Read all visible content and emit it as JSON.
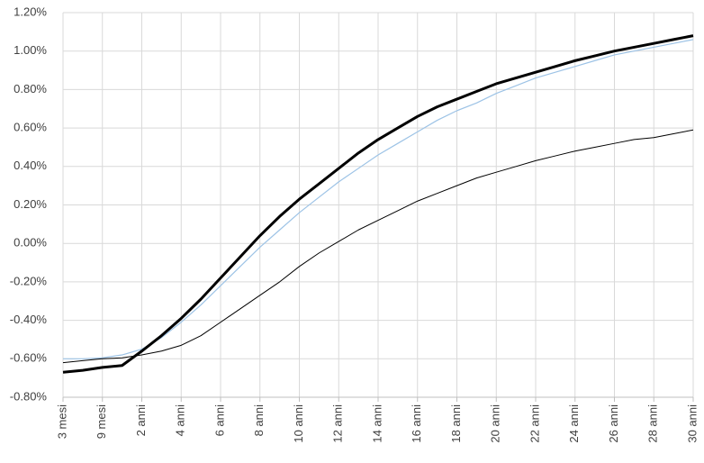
{
  "chart_data": {
    "type": "line",
    "categories": [
      "3 mesi",
      null,
      "9 mesi",
      null,
      "2 anni",
      null,
      "4 anni",
      null,
      "6 anni",
      null,
      "8 anni",
      null,
      "10 anni",
      null,
      "12 anni",
      null,
      "14 anni",
      null,
      "16 anni",
      null,
      "18 anni",
      null,
      "20 anni",
      null,
      "22 anni",
      null,
      "24 anni",
      null,
      "26 anni",
      null,
      "28 anni",
      null,
      "30 anni"
    ],
    "series": [
      {
        "color": "#9dc3e6",
        "width": 1.2,
        "values": [
          -0.6,
          -0.6,
          -0.595,
          -0.58,
          -0.55,
          -0.49,
          -0.41,
          -0.32,
          -0.22,
          -0.12,
          -0.02,
          0.07,
          0.16,
          0.24,
          0.32,
          0.39,
          0.46,
          0.52,
          0.58,
          0.64,
          0.69,
          0.73,
          0.78,
          0.82,
          0.86,
          0.89,
          0.92,
          0.95,
          0.98,
          1.0,
          1.02,
          1.04,
          1.06
        ]
      },
      {
        "color": "#000000",
        "width": 1,
        "values": [
          -0.62,
          -0.61,
          -0.6,
          -0.595,
          -0.58,
          -0.56,
          -0.53,
          -0.48,
          -0.41,
          -0.34,
          -0.27,
          -0.2,
          -0.12,
          -0.05,
          0.01,
          0.07,
          0.12,
          0.17,
          0.22,
          0.26,
          0.3,
          0.34,
          0.37,
          0.4,
          0.43,
          0.455,
          0.48,
          0.5,
          0.52,
          0.54,
          0.55,
          0.57,
          0.59
        ]
      },
      {
        "color": "#000000",
        "width": 3,
        "values": [
          -0.67,
          -0.66,
          -0.645,
          -0.635,
          -0.56,
          -0.48,
          -0.39,
          -0.29,
          -0.18,
          -0.07,
          0.04,
          0.14,
          0.23,
          0.31,
          0.39,
          0.47,
          0.54,
          0.6,
          0.66,
          0.71,
          0.75,
          0.79,
          0.83,
          0.86,
          0.89,
          0.92,
          0.95,
          0.975,
          1.0,
          1.02,
          1.04,
          1.06,
          1.08
        ]
      }
    ],
    "ylim": [
      -0.8,
      1.2
    ],
    "yticks": [
      {
        "value": -0.8,
        "label": "-0.80%"
      },
      {
        "value": -0.6,
        "label": "-0.60%"
      },
      {
        "value": -0.4,
        "label": "-0.40%"
      },
      {
        "value": -0.2,
        "label": "-0.20%"
      },
      {
        "value": 0,
        "label": "0.00%"
      },
      {
        "value": 0.2,
        "label": "0.20%"
      },
      {
        "value": 0.4,
        "label": "0.40%"
      },
      {
        "value": 0.6,
        "label": "0.60%"
      },
      {
        "value": 0.8,
        "label": "0.80%"
      },
      {
        "value": 1.0,
        "label": "1.00%"
      },
      {
        "value": 1.2,
        "label": "1.20%"
      }
    ],
    "grid": true
  }
}
